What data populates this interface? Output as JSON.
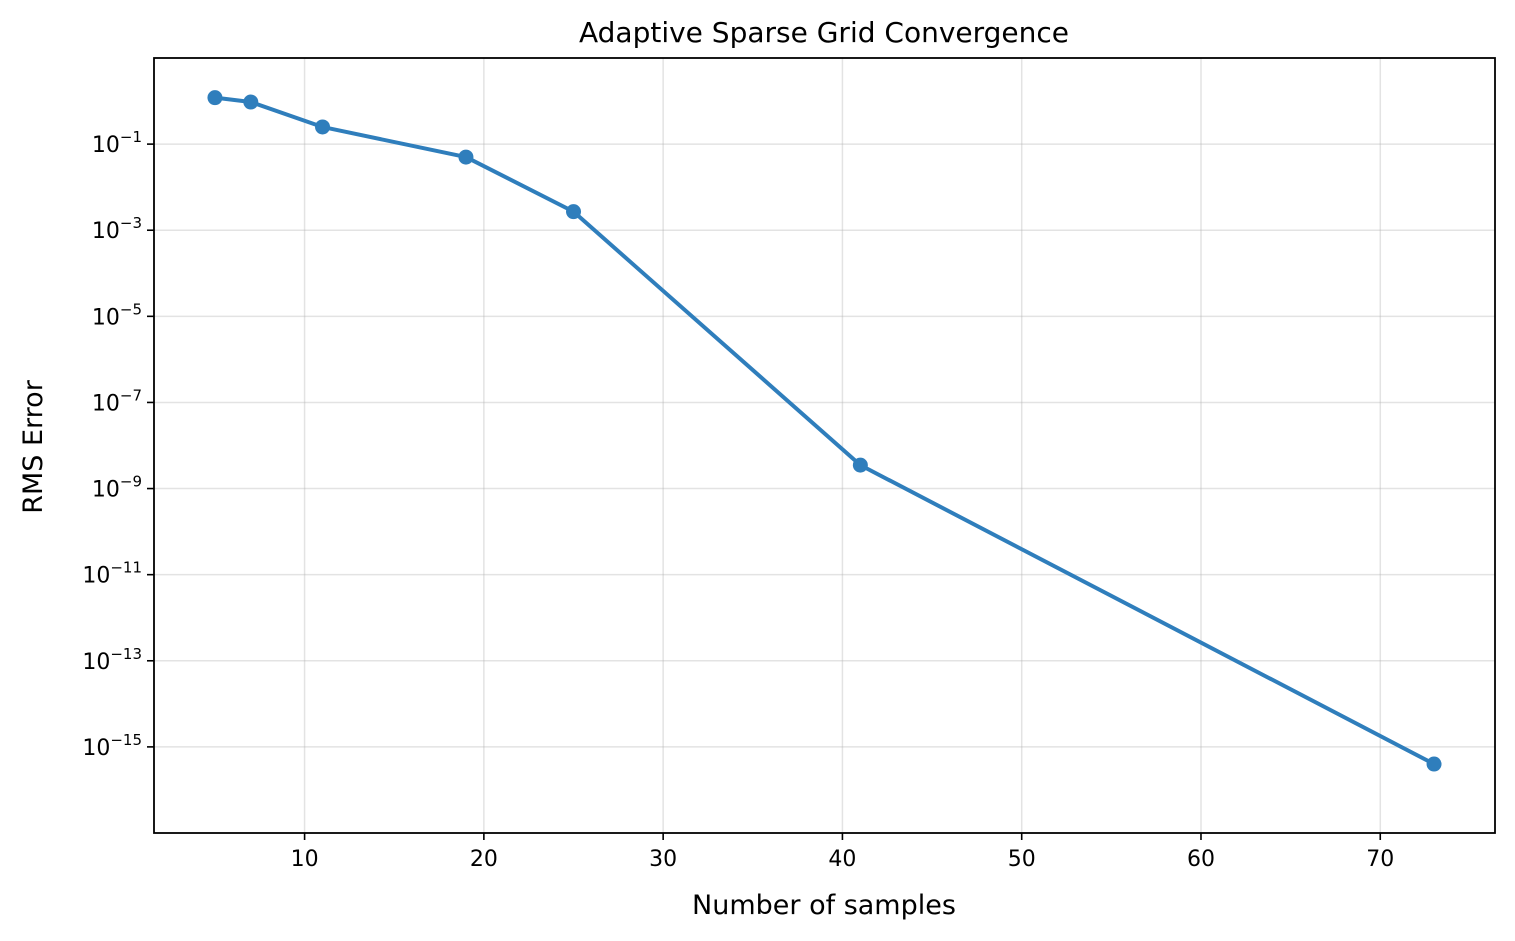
{
  "chart_data": {
    "type": "line",
    "title": "Adaptive Sparse Grid Convergence",
    "xlabel": "Number of samples",
    "ylabel": "RMS Error",
    "yscale": "log",
    "grid": true,
    "xlim": [
      1.6,
      76.4
    ],
    "ylim": [
      1e-17,
      10.0
    ],
    "x_ticks": [
      10,
      20,
      30,
      40,
      50,
      60,
      70
    ],
    "y_ticks": [
      {
        "base": "10",
        "exponent": "−1",
        "value": 0.1
      },
      {
        "base": "10",
        "exponent": "−3",
        "value": 0.001
      },
      {
        "base": "10",
        "exponent": "−5",
        "value": 1e-05
      },
      {
        "base": "10",
        "exponent": "−7",
        "value": 1e-07
      },
      {
        "base": "10",
        "exponent": "−9",
        "value": 1e-09
      },
      {
        "base": "10",
        "exponent": "−11",
        "value": 1e-11
      },
      {
        "base": "10",
        "exponent": "−13",
        "value": 1e-13
      },
      {
        "base": "10",
        "exponent": "−15",
        "value": 1e-15
      }
    ],
    "series": [
      {
        "color": "#2f7ebc",
        "marker": "circle",
        "points": [
          {
            "x": 5,
            "y": 1.2
          },
          {
            "x": 7,
            "y": 0.95
          },
          {
            "x": 11,
            "y": 0.25
          },
          {
            "x": 19,
            "y": 0.05
          },
          {
            "x": 25,
            "y": 0.0027
          },
          {
            "x": 41,
            "y": 3.5e-09
          },
          {
            "x": 73,
            "y": 4e-16
          }
        ]
      }
    ]
  }
}
